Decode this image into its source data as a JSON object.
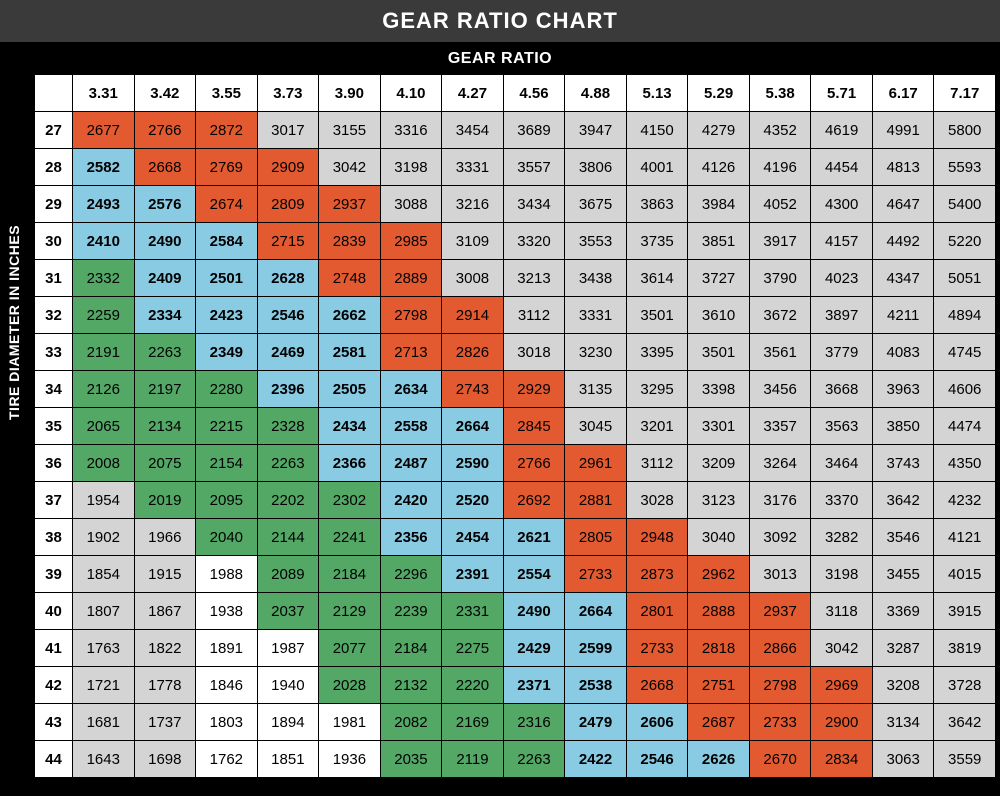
{
  "title": "GEAR RATIO CHART",
  "x_axis_label": "GEAR RATIO",
  "y_axis_label": "TIRE DIAMETER  IN INCHES",
  "colors": {
    "orange": "#e35a31",
    "blue": "#88cbe3",
    "green": "#53a866",
    "grey": "#d4d4d4",
    "white": "#ffffff",
    "black": "#000000",
    "header_bg": "#3a3a3a"
  },
  "col_headers": [
    "3.31",
    "3.42",
    "3.55",
    "3.73",
    "3.90",
    "4.10",
    "4.27",
    "4.56",
    "4.88",
    "5.13",
    "5.29",
    "5.38",
    "5.71",
    "6.17",
    "7.17"
  ],
  "row_headers": [
    "27",
    "28",
    "29",
    "30",
    "31",
    "32",
    "33",
    "34",
    "35",
    "36",
    "37",
    "38",
    "39",
    "40",
    "41",
    "42",
    "43",
    "44"
  ],
  "cells": [
    [
      [
        "2677",
        "orange",
        0
      ],
      [
        "2766",
        "orange",
        0
      ],
      [
        "2872",
        "orange",
        0
      ],
      [
        "3017",
        "grey",
        0
      ],
      [
        "3155",
        "grey",
        0
      ],
      [
        "3316",
        "grey",
        0
      ],
      [
        "3454",
        "grey",
        0
      ],
      [
        "3689",
        "grey",
        0
      ],
      [
        "3947",
        "grey",
        0
      ],
      [
        "4150",
        "grey",
        0
      ],
      [
        "4279",
        "grey",
        0
      ],
      [
        "4352",
        "grey",
        0
      ],
      [
        "4619",
        "grey",
        0
      ],
      [
        "4991",
        "grey",
        0
      ],
      [
        "5800",
        "grey",
        0
      ]
    ],
    [
      [
        "2582",
        "blue",
        1
      ],
      [
        "2668",
        "orange",
        0
      ],
      [
        "2769",
        "orange",
        0
      ],
      [
        "2909",
        "orange",
        0
      ],
      [
        "3042",
        "grey",
        0
      ],
      [
        "3198",
        "grey",
        0
      ],
      [
        "3331",
        "grey",
        0
      ],
      [
        "3557",
        "grey",
        0
      ],
      [
        "3806",
        "grey",
        0
      ],
      [
        "4001",
        "grey",
        0
      ],
      [
        "4126",
        "grey",
        0
      ],
      [
        "4196",
        "grey",
        0
      ],
      [
        "4454",
        "grey",
        0
      ],
      [
        "4813",
        "grey",
        0
      ],
      [
        "5593",
        "grey",
        0
      ]
    ],
    [
      [
        "2493",
        "blue",
        1
      ],
      [
        "2576",
        "blue",
        1
      ],
      [
        "2674",
        "orange",
        0
      ],
      [
        "2809",
        "orange",
        0
      ],
      [
        "2937",
        "orange",
        0
      ],
      [
        "3088",
        "grey",
        0
      ],
      [
        "3216",
        "grey",
        0
      ],
      [
        "3434",
        "grey",
        0
      ],
      [
        "3675",
        "grey",
        0
      ],
      [
        "3863",
        "grey",
        0
      ],
      [
        "3984",
        "grey",
        0
      ],
      [
        "4052",
        "grey",
        0
      ],
      [
        "4300",
        "grey",
        0
      ],
      [
        "4647",
        "grey",
        0
      ],
      [
        "5400",
        "grey",
        0
      ]
    ],
    [
      [
        "2410",
        "blue",
        1
      ],
      [
        "2490",
        "blue",
        1
      ],
      [
        "2584",
        "blue",
        1
      ],
      [
        "2715",
        "orange",
        0
      ],
      [
        "2839",
        "orange",
        0
      ],
      [
        "2985",
        "orange",
        0
      ],
      [
        "3109",
        "grey",
        0
      ],
      [
        "3320",
        "grey",
        0
      ],
      [
        "3553",
        "grey",
        0
      ],
      [
        "3735",
        "grey",
        0
      ],
      [
        "3851",
        "grey",
        0
      ],
      [
        "3917",
        "grey",
        0
      ],
      [
        "4157",
        "grey",
        0
      ],
      [
        "4492",
        "grey",
        0
      ],
      [
        "5220",
        "grey",
        0
      ]
    ],
    [
      [
        "2332",
        "green",
        0
      ],
      [
        "2409",
        "blue",
        1
      ],
      [
        "2501",
        "blue",
        1
      ],
      [
        "2628",
        "blue",
        1
      ],
      [
        "2748",
        "orange",
        0
      ],
      [
        "2889",
        "orange",
        0
      ],
      [
        "3008",
        "grey",
        0
      ],
      [
        "3213",
        "grey",
        0
      ],
      [
        "3438",
        "grey",
        0
      ],
      [
        "3614",
        "grey",
        0
      ],
      [
        "3727",
        "grey",
        0
      ],
      [
        "3790",
        "grey",
        0
      ],
      [
        "4023",
        "grey",
        0
      ],
      [
        "4347",
        "grey",
        0
      ],
      [
        "5051",
        "grey",
        0
      ]
    ],
    [
      [
        "2259",
        "green",
        0
      ],
      [
        "2334",
        "blue",
        1
      ],
      [
        "2423",
        "blue",
        1
      ],
      [
        "2546",
        "blue",
        1
      ],
      [
        "2662",
        "blue",
        1
      ],
      [
        "2798",
        "orange",
        0
      ],
      [
        "2914",
        "orange",
        0
      ],
      [
        "3112",
        "grey",
        0
      ],
      [
        "3331",
        "grey",
        0
      ],
      [
        "3501",
        "grey",
        0
      ],
      [
        "3610",
        "grey",
        0
      ],
      [
        "3672",
        "grey",
        0
      ],
      [
        "3897",
        "grey",
        0
      ],
      [
        "4211",
        "grey",
        0
      ],
      [
        "4894",
        "grey",
        0
      ]
    ],
    [
      [
        "2191",
        "green",
        0
      ],
      [
        "2263",
        "green",
        0
      ],
      [
        "2349",
        "blue",
        1
      ],
      [
        "2469",
        "blue",
        1
      ],
      [
        "2581",
        "blue",
        1
      ],
      [
        "2713",
        "orange",
        0
      ],
      [
        "2826",
        "orange",
        0
      ],
      [
        "3018",
        "grey",
        0
      ],
      [
        "3230",
        "grey",
        0
      ],
      [
        "3395",
        "grey",
        0
      ],
      [
        "3501",
        "grey",
        0
      ],
      [
        "3561",
        "grey",
        0
      ],
      [
        "3779",
        "grey",
        0
      ],
      [
        "4083",
        "grey",
        0
      ],
      [
        "4745",
        "grey",
        0
      ]
    ],
    [
      [
        "2126",
        "green",
        0
      ],
      [
        "2197",
        "green",
        0
      ],
      [
        "2280",
        "green",
        0
      ],
      [
        "2396",
        "blue",
        1
      ],
      [
        "2505",
        "blue",
        1
      ],
      [
        "2634",
        "blue",
        1
      ],
      [
        "2743",
        "orange",
        0
      ],
      [
        "2929",
        "orange",
        0
      ],
      [
        "3135",
        "grey",
        0
      ],
      [
        "3295",
        "grey",
        0
      ],
      [
        "3398",
        "grey",
        0
      ],
      [
        "3456",
        "grey",
        0
      ],
      [
        "3668",
        "grey",
        0
      ],
      [
        "3963",
        "grey",
        0
      ],
      [
        "4606",
        "grey",
        0
      ]
    ],
    [
      [
        "2065",
        "green",
        0
      ],
      [
        "2134",
        "green",
        0
      ],
      [
        "2215",
        "green",
        0
      ],
      [
        "2328",
        "green",
        0
      ],
      [
        "2434",
        "blue",
        1
      ],
      [
        "2558",
        "blue",
        1
      ],
      [
        "2664",
        "blue",
        1
      ],
      [
        "2845",
        "orange",
        0
      ],
      [
        "3045",
        "grey",
        0
      ],
      [
        "3201",
        "grey",
        0
      ],
      [
        "3301",
        "grey",
        0
      ],
      [
        "3357",
        "grey",
        0
      ],
      [
        "3563",
        "grey",
        0
      ],
      [
        "3850",
        "grey",
        0
      ],
      [
        "4474",
        "grey",
        0
      ]
    ],
    [
      [
        "2008",
        "green",
        0
      ],
      [
        "2075",
        "green",
        0
      ],
      [
        "2154",
        "green",
        0
      ],
      [
        "2263",
        "green",
        0
      ],
      [
        "2366",
        "blue",
        1
      ],
      [
        "2487",
        "blue",
        1
      ],
      [
        "2590",
        "blue",
        1
      ],
      [
        "2766",
        "orange",
        0
      ],
      [
        "2961",
        "orange",
        0
      ],
      [
        "3112",
        "grey",
        0
      ],
      [
        "3209",
        "grey",
        0
      ],
      [
        "3264",
        "grey",
        0
      ],
      [
        "3464",
        "grey",
        0
      ],
      [
        "3743",
        "grey",
        0
      ],
      [
        "4350",
        "grey",
        0
      ]
    ],
    [
      [
        "1954",
        "grey",
        0
      ],
      [
        "2019",
        "green",
        0
      ],
      [
        "2095",
        "green",
        0
      ],
      [
        "2202",
        "green",
        0
      ],
      [
        "2302",
        "green",
        0
      ],
      [
        "2420",
        "blue",
        1
      ],
      [
        "2520",
        "blue",
        1
      ],
      [
        "2692",
        "orange",
        0
      ],
      [
        "2881",
        "orange",
        0
      ],
      [
        "3028",
        "grey",
        0
      ],
      [
        "3123",
        "grey",
        0
      ],
      [
        "3176",
        "grey",
        0
      ],
      [
        "3370",
        "grey",
        0
      ],
      [
        "3642",
        "grey",
        0
      ],
      [
        "4232",
        "grey",
        0
      ]
    ],
    [
      [
        "1902",
        "grey",
        0
      ],
      [
        "1966",
        "grey",
        0
      ],
      [
        "2040",
        "green",
        0
      ],
      [
        "2144",
        "green",
        0
      ],
      [
        "2241",
        "green",
        0
      ],
      [
        "2356",
        "blue",
        1
      ],
      [
        "2454",
        "blue",
        1
      ],
      [
        "2621",
        "blue",
        1
      ],
      [
        "2805",
        "orange",
        0
      ],
      [
        "2948",
        "orange",
        0
      ],
      [
        "3040",
        "grey",
        0
      ],
      [
        "3092",
        "grey",
        0
      ],
      [
        "3282",
        "grey",
        0
      ],
      [
        "3546",
        "grey",
        0
      ],
      [
        "4121",
        "grey",
        0
      ]
    ],
    [
      [
        "1854",
        "grey",
        0
      ],
      [
        "1915",
        "grey",
        0
      ],
      [
        "1988",
        "white",
        0
      ],
      [
        "2089",
        "green",
        0
      ],
      [
        "2184",
        "green",
        0
      ],
      [
        "2296",
        "green",
        0
      ],
      [
        "2391",
        "blue",
        1
      ],
      [
        "2554",
        "blue",
        1
      ],
      [
        "2733",
        "orange",
        0
      ],
      [
        "2873",
        "orange",
        0
      ],
      [
        "2962",
        "orange",
        0
      ],
      [
        "3013",
        "grey",
        0
      ],
      [
        "3198",
        "grey",
        0
      ],
      [
        "3455",
        "grey",
        0
      ],
      [
        "4015",
        "grey",
        0
      ]
    ],
    [
      [
        "1807",
        "grey",
        0
      ],
      [
        "1867",
        "grey",
        0
      ],
      [
        "1938",
        "white",
        0
      ],
      [
        "2037",
        "green",
        0
      ],
      [
        "2129",
        "green",
        0
      ],
      [
        "2239",
        "green",
        0
      ],
      [
        "2331",
        "green",
        0
      ],
      [
        "2490",
        "blue",
        1
      ],
      [
        "2664",
        "blue",
        1
      ],
      [
        "2801",
        "orange",
        0
      ],
      [
        "2888",
        "orange",
        0
      ],
      [
        "2937",
        "orange",
        0
      ],
      [
        "3118",
        "grey",
        0
      ],
      [
        "3369",
        "grey",
        0
      ],
      [
        "3915",
        "grey",
        0
      ]
    ],
    [
      [
        "1763",
        "grey",
        0
      ],
      [
        "1822",
        "grey",
        0
      ],
      [
        "1891",
        "white",
        0
      ],
      [
        "1987",
        "white",
        0
      ],
      [
        "2077",
        "green",
        0
      ],
      [
        "2184",
        "green",
        0
      ],
      [
        "2275",
        "green",
        0
      ],
      [
        "2429",
        "blue",
        1
      ],
      [
        "2599",
        "blue",
        1
      ],
      [
        "2733",
        "orange",
        0
      ],
      [
        "2818",
        "orange",
        0
      ],
      [
        "2866",
        "orange",
        0
      ],
      [
        "3042",
        "grey",
        0
      ],
      [
        "3287",
        "grey",
        0
      ],
      [
        "3819",
        "grey",
        0
      ]
    ],
    [
      [
        "1721",
        "grey",
        0
      ],
      [
        "1778",
        "grey",
        0
      ],
      [
        "1846",
        "white",
        0
      ],
      [
        "1940",
        "white",
        0
      ],
      [
        "2028",
        "green",
        0
      ],
      [
        "2132",
        "green",
        0
      ],
      [
        "2220",
        "green",
        0
      ],
      [
        "2371",
        "blue",
        1
      ],
      [
        "2538",
        "blue",
        1
      ],
      [
        "2668",
        "orange",
        0
      ],
      [
        "2751",
        "orange",
        0
      ],
      [
        "2798",
        "orange",
        0
      ],
      [
        "2969",
        "orange",
        0
      ],
      [
        "3208",
        "grey",
        0
      ],
      [
        "3728",
        "grey",
        0
      ]
    ],
    [
      [
        "1681",
        "grey",
        0
      ],
      [
        "1737",
        "grey",
        0
      ],
      [
        "1803",
        "white",
        0
      ],
      [
        "1894",
        "white",
        0
      ],
      [
        "1981",
        "white",
        0
      ],
      [
        "2082",
        "green",
        0
      ],
      [
        "2169",
        "green",
        0
      ],
      [
        "2316",
        "green",
        0
      ],
      [
        "2479",
        "blue",
        1
      ],
      [
        "2606",
        "blue",
        1
      ],
      [
        "2687",
        "orange",
        0
      ],
      [
        "2733",
        "orange",
        0
      ],
      [
        "2900",
        "orange",
        0
      ],
      [
        "3134",
        "grey",
        0
      ],
      [
        "3642",
        "grey",
        0
      ]
    ],
    [
      [
        "1643",
        "grey",
        0
      ],
      [
        "1698",
        "grey",
        0
      ],
      [
        "1762",
        "white",
        0
      ],
      [
        "1851",
        "white",
        0
      ],
      [
        "1936",
        "white",
        0
      ],
      [
        "2035",
        "green",
        0
      ],
      [
        "2119",
        "green",
        0
      ],
      [
        "2263",
        "green",
        0
      ],
      [
        "2422",
        "blue",
        1
      ],
      [
        "2546",
        "blue",
        1
      ],
      [
        "2626",
        "blue",
        1
      ],
      [
        "2670",
        "orange",
        0
      ],
      [
        "2834",
        "orange",
        0
      ],
      [
        "3063",
        "grey",
        0
      ],
      [
        "3559",
        "grey",
        0
      ]
    ]
  ]
}
